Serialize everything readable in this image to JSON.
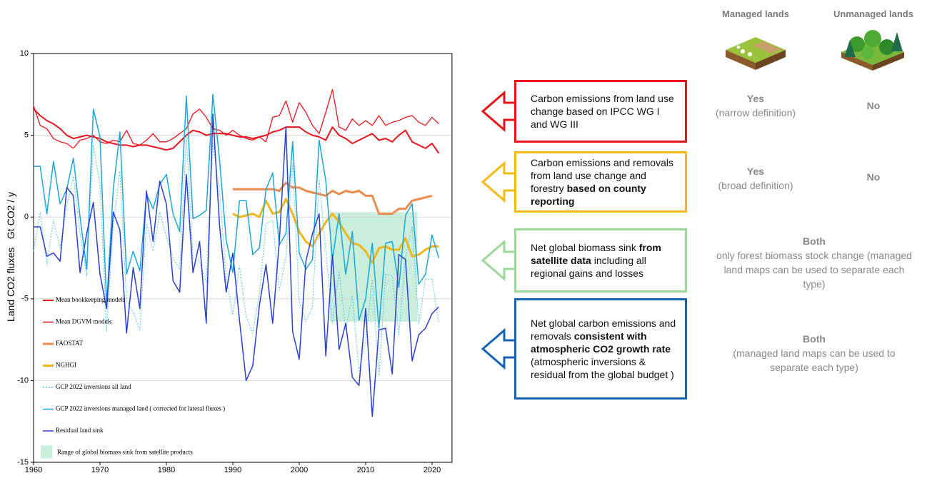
{
  "chart_data": {
    "type": "line",
    "ylabel": "Land CO2 fluxes   Gt CO2 / y",
    "x": [
      1960,
      1961,
      1962,
      1963,
      1964,
      1965,
      1966,
      1967,
      1968,
      1969,
      1970,
      1971,
      1972,
      1973,
      1974,
      1975,
      1976,
      1977,
      1978,
      1979,
      1980,
      1981,
      1982,
      1983,
      1984,
      1985,
      1986,
      1987,
      1988,
      1989,
      1990,
      1991,
      1992,
      1993,
      1994,
      1995,
      1996,
      1997,
      1998,
      1999,
      2000,
      2001,
      2002,
      2003,
      2004,
      2005,
      2006,
      2007,
      2008,
      2009,
      2010,
      2011,
      2012,
      2013,
      2014,
      2015,
      2016,
      2017,
      2018,
      2019,
      2020,
      2021
    ],
    "xlim": [
      1960,
      2023
    ],
    "xticks": [
      1960,
      1970,
      1980,
      1990,
      2000,
      2010,
      2020
    ],
    "ylim": [
      -15,
      10
    ],
    "yticks": [
      -15,
      -10,
      -5,
      0,
      5,
      10
    ],
    "grid": true,
    "series": [
      {
        "name": "Mean  bookkeeping models",
        "color": "#e8141b",
        "width": 2,
        "dash": false,
        "values": [
          6.6,
          6.2,
          5.9,
          5.7,
          5.4,
          5.0,
          4.8,
          4.9,
          5.0,
          4.9,
          4.8,
          4.6,
          4.5,
          4.4,
          4.4,
          4.3,
          4.4,
          4.4,
          4.3,
          4.2,
          4.1,
          4.2,
          4.6,
          5.0,
          5.3,
          5.2,
          5.0,
          5.1,
          5.1,
          5.1,
          5.0,
          4.9,
          4.9,
          4.8,
          4.9,
          5.0,
          5.2,
          5.3,
          5.5,
          5.5,
          5.5,
          5.2,
          5.0,
          4.9,
          4.7,
          5.5,
          5.0,
          4.8,
          4.5,
          4.7,
          4.9,
          5.1,
          4.7,
          4.8,
          4.6,
          5.0,
          5.3,
          4.6,
          4.4,
          4.2,
          4.5,
          3.9
        ]
      },
      {
        "name": "Mean DGVM models",
        "color": "#e8141b",
        "width": 1.3,
        "dash": false,
        "values": [
          6.8,
          5.6,
          5.4,
          4.8,
          4.6,
          4.5,
          4.2,
          4.7,
          4.8,
          5.0,
          4.6,
          4.5,
          4.7,
          4.6,
          5.3,
          4.5,
          4.4,
          4.7,
          5.1,
          4.6,
          4.6,
          4.8,
          5.1,
          5.4,
          6.3,
          6.6,
          6.1,
          5.4,
          5.3,
          5.0,
          5.3,
          5.0,
          4.8,
          4.7,
          4.9,
          4.6,
          6.1,
          6.2,
          7.1,
          5.8,
          7.0,
          6.4,
          5.6,
          5.1,
          6.4,
          7.8,
          5.5,
          5.3,
          6.0,
          5.6,
          5.9,
          5.6,
          6.2,
          5.6,
          5.8,
          5.9,
          6.1,
          6.2,
          5.8,
          5.6,
          6.1,
          5.7
        ]
      },
      {
        "name": "FAOSTAT",
        "color": "#ee8a4e",
        "width": 3,
        "dash": false,
        "values": [
          null,
          null,
          null,
          null,
          null,
          null,
          null,
          null,
          null,
          null,
          null,
          null,
          null,
          null,
          null,
          null,
          null,
          null,
          null,
          null,
          null,
          null,
          null,
          null,
          null,
          null,
          null,
          null,
          null,
          null,
          1.7,
          1.7,
          1.7,
          1.7,
          1.7,
          1.7,
          1.7,
          1.6,
          2.1,
          1.8,
          1.8,
          1.6,
          1.5,
          1.4,
          1.3,
          1.6,
          1.4,
          1.6,
          1.5,
          1.6,
          1.3,
          1.3,
          0.2,
          0.2,
          0.2,
          0.5,
          0.5,
          1.0,
          1.1,
          1.2,
          1.3,
          null
        ]
      },
      {
        "name": "NGHGI",
        "color": "#f0b61d",
        "width": 3,
        "dash": false,
        "values": [
          null,
          null,
          null,
          null,
          null,
          null,
          null,
          null,
          null,
          null,
          null,
          null,
          null,
          null,
          null,
          null,
          null,
          null,
          null,
          null,
          null,
          null,
          null,
          null,
          null,
          null,
          null,
          null,
          null,
          null,
          0.2,
          0.0,
          0.1,
          0.2,
          0.0,
          1.0,
          0.2,
          0.3,
          1.1,
          0.2,
          -0.9,
          -1.5,
          -1.8,
          -1.0,
          -0.3,
          0.2,
          -0.3,
          -1.0,
          -1.6,
          -1.7,
          -2.1,
          -2.8,
          -1.9,
          -1.8,
          -2.0,
          -2.0,
          -1.3,
          -2.4,
          -2.3,
          -2.0,
          -1.8,
          -1.8
        ]
      },
      {
        "name": "GCP 2022 inversions all land",
        "color": "#58c4ea",
        "width": 1,
        "dash": true,
        "values": [
          -2.1,
          0.3,
          -2.9,
          -0.2,
          -1.9,
          0.7,
          2.5,
          -1.0,
          -3.6,
          4.4,
          2.0,
          -7.0,
          -0.5,
          2.8,
          -5.1,
          -5.8,
          -6.9,
          -0.4,
          -2.1,
          0.3,
          -1.2,
          -2.5,
          -3.2,
          5.0,
          -2.5,
          -2.7,
          -4.0,
          4.5,
          1.6,
          -3.7,
          -6.0,
          -3.0,
          -6.1,
          -7.1,
          -4.7,
          -0.4,
          -0.2,
          -4.5,
          -2.4,
          3.3,
          -5.2,
          -6.4,
          -5.5,
          2.3,
          -2.0,
          -6.5,
          -3.3,
          -6.9,
          -4.8,
          -9.4,
          -7.5,
          -3.8,
          -9.7,
          -3.5,
          -3.6,
          -7.2,
          -2.4,
          -0.6,
          -6.5,
          -3.8,
          -3.8,
          -6.5
        ]
      },
      {
        "name": "GCP 2022 inversions managed land ( corrected for  lateral fluxes )",
        "color": "#1ba6d8",
        "width": 1.5,
        "dash": false,
        "values": [
          3.1,
          3.1,
          0.2,
          3.4,
          0.8,
          1.7,
          3.6,
          0.0,
          -3.2,
          6.6,
          4.9,
          -5.4,
          1.7,
          5.2,
          -3.5,
          -2.1,
          -3.3,
          1.4,
          0.5,
          2.0,
          2.6,
          0.2,
          -0.9,
          7.4,
          -0.1,
          0.1,
          0.4,
          7.5,
          3.5,
          -1.4,
          -3.4,
          1.0,
          1.0,
          -2.3,
          -1.9,
          1.7,
          2.7,
          -1.7,
          -1.0,
          4.6,
          -2.2,
          -3.2,
          -2.6,
          4.7,
          2.2,
          -2.6,
          0.2,
          -3.5,
          -0.9,
          -6.3,
          -5.0,
          -1.6,
          -6.8,
          -1.6,
          -1.5,
          -4.3,
          0.1,
          0.8,
          -4.1,
          -3.5,
          -1.1,
          -2.5
        ]
      },
      {
        "name": "Residual land sink",
        "color": "#2a3fcf",
        "width": 1.5,
        "dash": false,
        "values": [
          -0.6,
          -0.6,
          -2.4,
          -2.2,
          -2.7,
          1.8,
          1.3,
          -3.4,
          -1.0,
          0.9,
          -3.5,
          -5.6,
          0.3,
          -0.8,
          -7.1,
          -3.1,
          -5.6,
          1.6,
          -1.5,
          2.2,
          0.8,
          -3.9,
          -4.6,
          2.6,
          -3.4,
          -1.5,
          -6.5,
          6.3,
          -0.5,
          -4.6,
          -2.2,
          -6.3,
          -10.0,
          -9.1,
          -5.4,
          -2.9,
          -6.5,
          -1.5,
          5.5,
          -7.0,
          -8.7,
          -2.7,
          -1.0,
          0.2,
          -8.5,
          -2.3,
          -8.1,
          -6.5,
          -9.8,
          -10.3,
          -5.6,
          -12.2,
          -6.9,
          -6.8,
          -9.6,
          -2.3,
          -2.6,
          -8.8,
          -7.2,
          -6.8,
          -5.9,
          -5.5
        ]
      }
    ],
    "range": {
      "name": "Range of global biomass sink from satellite products",
      "color": "#9de0bd",
      "x": [
        2004.6,
        2017.8
      ],
      "y": [
        -6.4,
        0.3
      ]
    }
  },
  "table": {
    "headers": [
      "Managed lands",
      "Unmanaged lands"
    ],
    "rows": [
      {
        "color": "#e8141b",
        "description": [
          {
            "text": "Carbon emissions from land use change based on IPCC WG I and WG III",
            "bold": false
          }
        ],
        "managed": "Yes",
        "managed_note": "(narrow definition)",
        "unmanaged": "No"
      },
      {
        "color": "#f5b90f",
        "description": [
          {
            "text": "Carbon emissions and removals from land use change and forestry",
            "bold": false
          },
          {
            "text": "based on county reporting",
            "bold": true
          }
        ],
        "managed": "Yes",
        "managed_note": "(broad definition)",
        "unmanaged": "No"
      },
      {
        "color": "#9ed79b",
        "description": [
          {
            "text": "Net global biomass sink",
            "bold": false
          },
          {
            "text": "from satellite data",
            "bold": true
          },
          {
            "text": "including all regional gains and losses",
            "bold": false
          }
        ],
        "combined": "Both",
        "combined_note": "only forest biomass stock change (managed land maps can be used to separate each type)"
      },
      {
        "color": "#1663b5",
        "description": [
          {
            "text": "Net global carbon emissions and removals",
            "bold": false
          },
          {
            "text": "consistent with atmospheric CO2 growth rate",
            "bold": true
          },
          {
            "text": "(atmospheric inversions & residual from the global budget )",
            "bold": false
          }
        ],
        "combined": "Both",
        "combined_note": "(managed land maps can be used to separate each type)"
      }
    ]
  }
}
